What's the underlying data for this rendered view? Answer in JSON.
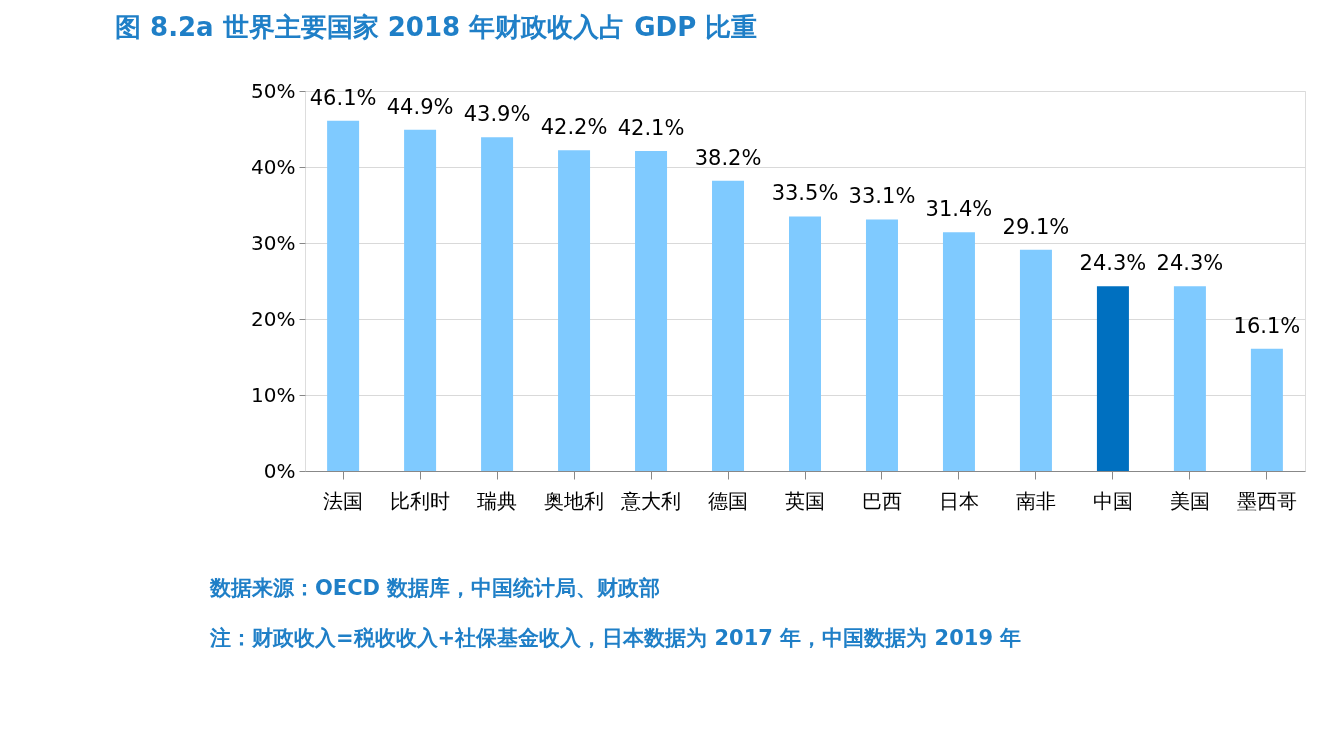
{
  "chart_data": {
    "type": "bar",
    "title": "图 8.2a  世界主要国家 2018 年财政收入占 GDP 比重",
    "categories": [
      "法国",
      "比利时",
      "瑞典",
      "奥地利",
      "意大利",
      "德国",
      "英国",
      "巴西",
      "日本",
      "南非",
      "中国",
      "美国",
      "墨西哥"
    ],
    "values": [
      46.1,
      44.9,
      43.9,
      42.2,
      42.1,
      38.2,
      33.5,
      33.1,
      31.4,
      29.1,
      24.3,
      24.3,
      16.1
    ],
    "value_labels": [
      "46.1%",
      "44.9%",
      "43.9%",
      "42.2%",
      "42.1%",
      "38.2%",
      "33.5%",
      "33.1%",
      "31.4%",
      "29.1%",
      "24.3%",
      "24.3%",
      "16.1%"
    ],
    "colors": [
      "#7fcaff",
      "#7fcaff",
      "#7fcaff",
      "#7fcaff",
      "#7fcaff",
      "#7fcaff",
      "#7fcaff",
      "#7fcaff",
      "#7fcaff",
      "#7fcaff",
      "#0070c0",
      "#7fcaff",
      "#7fcaff"
    ],
    "ylim": [
      0,
      50
    ],
    "yticks": [
      {
        "value": 0,
        "label": "0%"
      },
      {
        "value": 10,
        "label": "10%"
      },
      {
        "value": 20,
        "label": "20%"
      },
      {
        "value": 30,
        "label": "30%"
      },
      {
        "value": 40,
        "label": "40%"
      },
      {
        "value": 50,
        "label": "50%"
      }
    ],
    "grid": "y",
    "annotations": [
      "数据来源：OECD 数据库，中国统计局、财政部",
      "注：财政收入=税收收入+社保基金收入，日本数据为 2017 年，中国数据为 2019 年"
    ]
  }
}
